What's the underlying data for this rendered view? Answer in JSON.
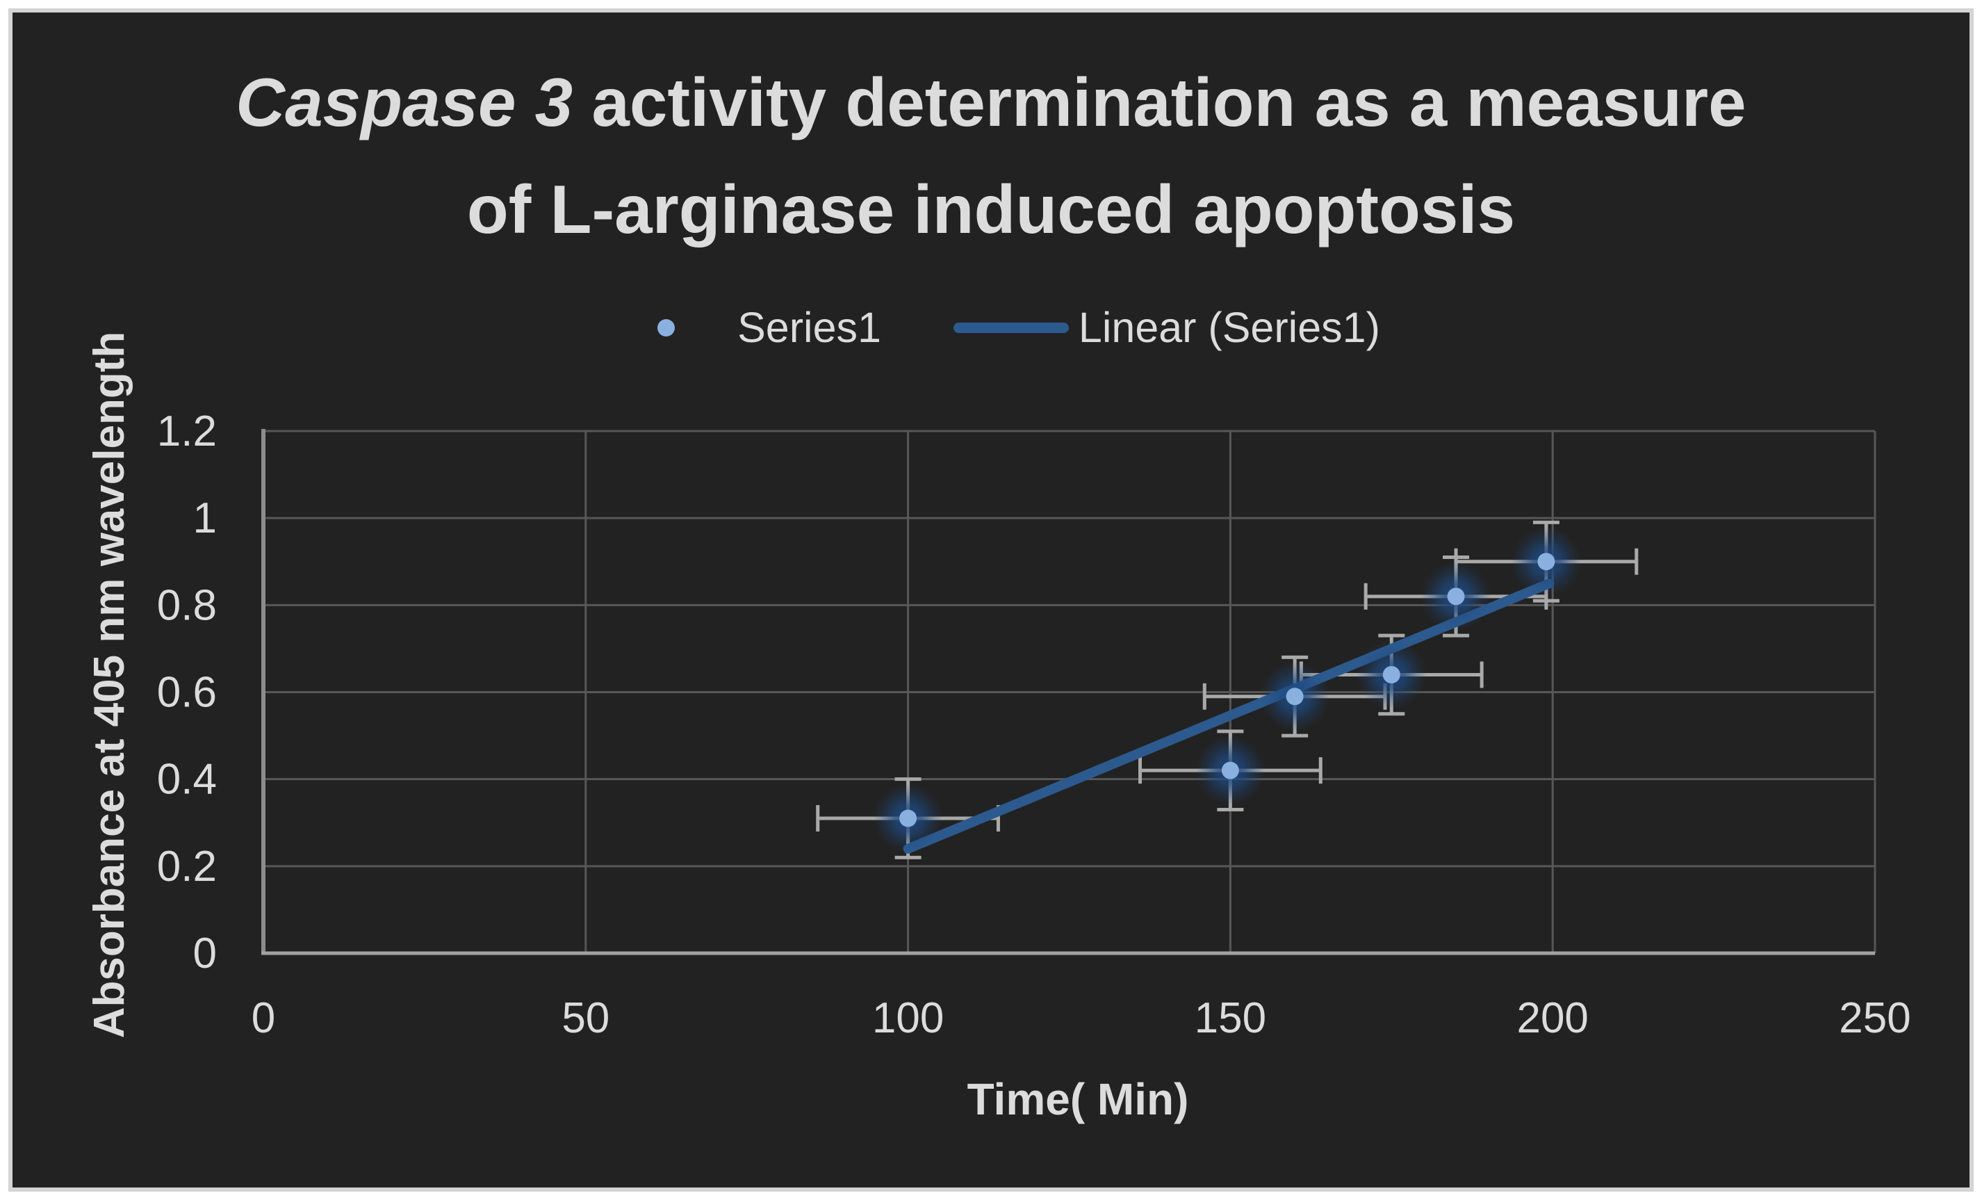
{
  "chart": {
    "title": {
      "italic_part": "Caspase 3",
      "line1_rest": " activity determination as a measure",
      "line2": "of L-arginase induced apoptosis"
    },
    "legend": {
      "series1_label": "Series1",
      "linear_label": "Linear (Series1)"
    },
    "x_axis_title": "Time( Min)",
    "y_axis_title": "Absorbance at 405 nm wavelength",
    "colors": {
      "page_background": "#ffffff",
      "chart_background": "#222222",
      "chart_border": "#d4d4d4",
      "text": "#dcdcdc",
      "gridline": "#575757",
      "bottom_axis_line": "#a3a3a3",
      "left_axis_line": "#8c8c8c",
      "error_bar": "#a9a9a9",
      "marker_fill": "#8ab0e0",
      "marker_glow": "#1e4a82",
      "trendline": "#2d5a8e"
    }
  },
  "chart_data": {
    "type": "scatter",
    "title": "Caspase 3 activity determination as a measure of L-arginase induced apoptosis",
    "xlabel": "Time( Min)",
    "ylabel": "Absorbance at 405 nm wavelength",
    "xlim": [
      0,
      250
    ],
    "ylim": [
      0,
      1.2
    ],
    "xticks": [
      0,
      50,
      100,
      150,
      200,
      250
    ],
    "yticks": [
      0,
      0.2,
      0.4,
      0.6,
      0.8,
      1,
      1.2
    ],
    "grid": true,
    "legend_position": "top-center",
    "series": [
      {
        "name": "Series1",
        "kind": "scatter-with-error-bars",
        "x": [
          100,
          150,
          160,
          175,
          185,
          199
        ],
        "y": [
          0.31,
          0.42,
          0.59,
          0.64,
          0.82,
          0.9
        ],
        "x_error": 14,
        "y_error": 0.09
      },
      {
        "name": "Linear (Series1)",
        "kind": "linear-trendline",
        "x": [
          100,
          199.5
        ],
        "y": [
          0.24,
          0.85
        ]
      }
    ]
  }
}
